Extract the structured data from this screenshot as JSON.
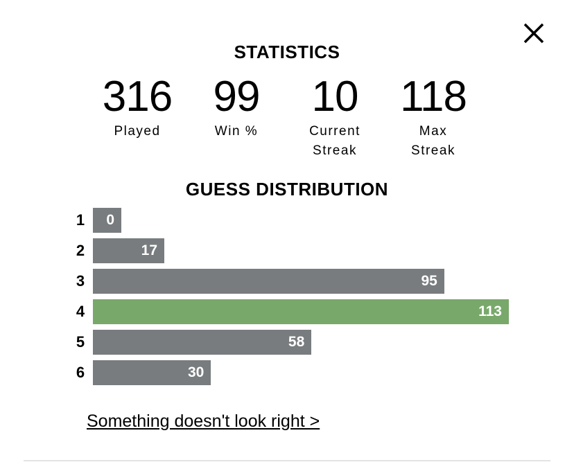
{
  "header": {
    "title": "STATISTICS"
  },
  "stats": [
    {
      "value": 316,
      "label": "Played"
    },
    {
      "value": 99,
      "label": "Win %"
    },
    {
      "value": 10,
      "label": "Current Streak"
    },
    {
      "value": 118,
      "label": "Max Streak"
    }
  ],
  "distribution": {
    "title": "GUESS DISTRIBUTION",
    "rows": [
      {
        "label": "1",
        "value": 0,
        "color": "#787c7e"
      },
      {
        "label": "2",
        "value": 17,
        "color": "#787c7e"
      },
      {
        "label": "3",
        "value": 95,
        "color": "#787c7e"
      },
      {
        "label": "4",
        "value": 113,
        "color": "#79a86b"
      },
      {
        "label": "5",
        "value": 58,
        "color": "#787c7e"
      },
      {
        "label": "6",
        "value": 30,
        "color": "#787c7e"
      }
    ]
  },
  "footer": {
    "link": "Something doesn't look right >"
  }
}
